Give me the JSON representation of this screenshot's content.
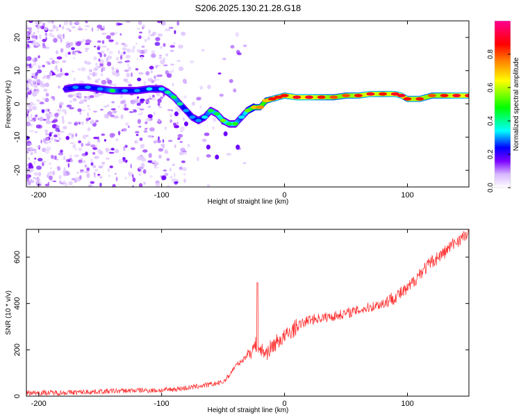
{
  "title": "S206.2025.130.21.28.G18",
  "chart_data": [
    {
      "type": "heatmap",
      "xlabel": "Height of straight line (km)",
      "ylabel": "Frequency (Hz)",
      "xlim": [
        -210,
        150
      ],
      "ylim": [
        -25,
        25
      ],
      "xticks": [
        -200,
        -100,
        0,
        100
      ],
      "yticks": [
        -20,
        -10,
        0,
        10,
        20
      ],
      "ridge": {
        "x": [
          -178,
          -170,
          -160,
          -150,
          -140,
          -130,
          -120,
          -110,
          -100,
          -95,
          -90,
          -85,
          -80,
          -75,
          -70,
          -65,
          -60,
          -55,
          -50,
          -45,
          -40,
          -35,
          -30,
          -25,
          -20,
          -15,
          -10,
          -5,
          0,
          10,
          20,
          30,
          40,
          50,
          60,
          70,
          80,
          90,
          95,
          100,
          110,
          120,
          130,
          140,
          150
        ],
        "y": [
          4.5,
          5,
          5,
          4.5,
          4,
          4,
          4,
          4.5,
          4.5,
          3.5,
          2,
          0,
          -2,
          -4,
          -5,
          -4,
          -2,
          -3,
          -5,
          -6,
          -6,
          -4,
          -2,
          -1,
          -1,
          1,
          1.5,
          2,
          2.5,
          2,
          2,
          2,
          2,
          2.5,
          2.5,
          3,
          3,
          3,
          2.5,
          1.5,
          1.5,
          2.5,
          2.5,
          2.5,
          2.5
        ],
        "amplitude": [
          0.2,
          0.3,
          0.3,
          0.3,
          0.45,
          0.3,
          0.3,
          0.35,
          0.35,
          0.4,
          0.45,
          0.4,
          0.3,
          0.3,
          0.3,
          0.35,
          0.45,
          0.45,
          0.55,
          0.45,
          0.5,
          0.35,
          0.55,
          0.7,
          0.75,
          0.7,
          0.85,
          0.85,
          0.85,
          0.9,
          0.9,
          0.85,
          0.8,
          0.8,
          0.85,
          0.9,
          0.85,
          0.9,
          0.9,
          0.85,
          0.85,
          0.8,
          0.85,
          0.9,
          0.9
        ]
      },
      "colorbar": {
        "label": "Normalized spectral amplitude",
        "range": [
          0.0,
          1.0
        ],
        "ticks": [
          "0.0",
          "0.2",
          "0.4",
          "0.6",
          "0.8"
        ],
        "tick_values": [
          0.0,
          0.2,
          0.4,
          0.6,
          0.8
        ]
      }
    },
    {
      "type": "line",
      "xlabel": "Height of straight line (km)",
      "ylabel": "SNR (10 * v/v)",
      "xlim": [
        -210,
        150
      ],
      "ylim": [
        0,
        720
      ],
      "xticks": [
        -200,
        -100,
        0,
        100
      ],
      "yticks": [
        0,
        200,
        400,
        600
      ],
      "color": "#ff3333",
      "series": [
        {
          "name": "SNR",
          "x": [
            -210,
            -180,
            -150,
            -120,
            -100,
            -80,
            -60,
            -50,
            -45,
            -40,
            -35,
            -30,
            -25,
            -22,
            -20,
            -15,
            -10,
            -5,
            0,
            10,
            20,
            40,
            60,
            80,
            90,
            100,
            110,
            120,
            130,
            140,
            150
          ],
          "y": [
            15,
            15,
            20,
            25,
            25,
            35,
            50,
            60,
            90,
            130,
            150,
            180,
            210,
            230,
            200,
            185,
            215,
            240,
            255,
            300,
            330,
            345,
            370,
            400,
            430,
            460,
            530,
            580,
            620,
            670,
            700
          ]
        }
      ],
      "annotations": [
        {
          "label": "spike",
          "x": -22,
          "y": 490
        }
      ]
    }
  ]
}
